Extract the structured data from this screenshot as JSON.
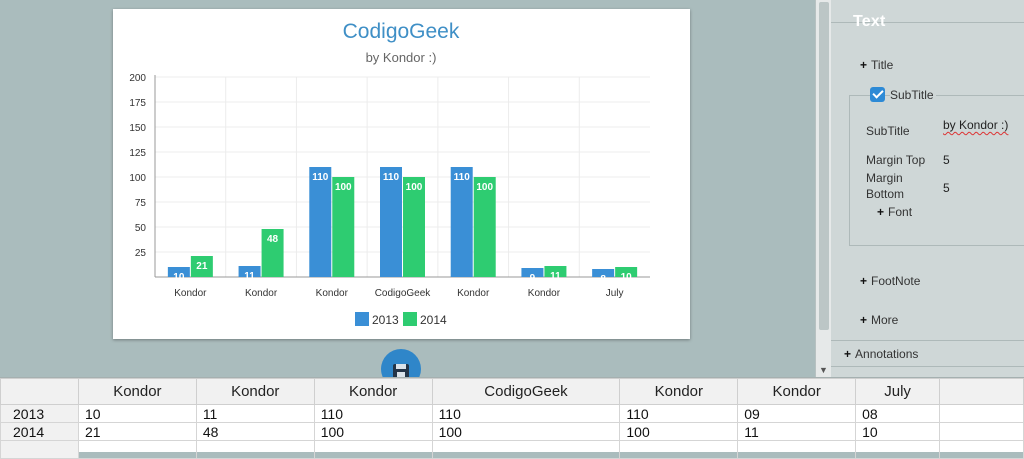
{
  "chart_data": {
    "type": "bar",
    "title": "CodigoGeek",
    "subtitle": "by Kondor :)",
    "categories": [
      "Kondor",
      "Kondor",
      "Kondor",
      "CodigoGeek",
      "Kondor",
      "Kondor",
      "July"
    ],
    "series": [
      {
        "name": "2013",
        "color": "#3a8fd6",
        "values": [
          10,
          11,
          110,
          110,
          110,
          9,
          8
        ],
        "labels": [
          "10",
          "11",
          "110",
          "110",
          "110",
          "9",
          "8"
        ]
      },
      {
        "name": "2014",
        "color": "#2ecc71",
        "values": [
          21,
          48,
          100,
          100,
          100,
          11,
          10
        ],
        "labels": [
          "21",
          "48",
          "100",
          "100",
          "100",
          "11",
          "10"
        ]
      }
    ],
    "ylim": [
      0,
      200
    ],
    "yticks": [
      "200",
      "175",
      "150",
      "125",
      "100",
      "75",
      "50",
      "25"
    ],
    "grid": true,
    "legend_position": "bottom"
  },
  "panel": {
    "section_title": "Text",
    "title_item": "Title",
    "subtitle_legend": "SubTitle",
    "subtitle_label": "SubTitle",
    "subtitle_value": "by Kondor :)",
    "margin_top_label": "Margin Top",
    "margin_top_value": "5",
    "margin_bottom_label_1": "Margin",
    "margin_bottom_label_2": "Bottom",
    "margin_bottom_value": "5",
    "font_item": "Font",
    "footnote_item": "FootNote",
    "more_item": "More",
    "annotations_item": "Annotations"
  },
  "grid": {
    "headers": [
      "",
      "Kondor",
      "Kondor",
      "Kondor",
      "CodigoGeek",
      "Kondor",
      "Kondor",
      "July",
      ""
    ],
    "rows": [
      {
        "label": "2013",
        "cells": [
          "10",
          "11",
          "110",
          "110",
          "110",
          "09",
          "08",
          ""
        ]
      },
      {
        "label": "2014",
        "cells": [
          "21",
          "48",
          "100",
          "100",
          "100",
          "11",
          "10",
          ""
        ]
      },
      {
        "label": "",
        "cells": [
          "",
          "",
          "",
          "",
          "",
          "",
          "",
          ""
        ]
      }
    ]
  },
  "icons": {
    "save": "floppy-disk-icon",
    "plus": "plus-icon",
    "check": "checkmark-icon"
  }
}
